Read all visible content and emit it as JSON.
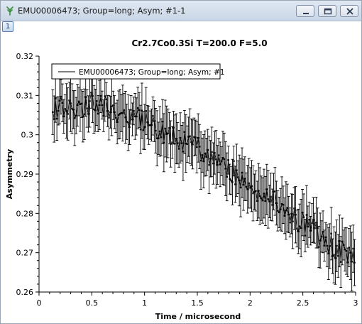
{
  "window": {
    "title": "EMU00006473; Group=long; Asym; #1-1",
    "graph_number": "1",
    "icons": [
      "app-graph-icon",
      "minimize-icon",
      "maximize-icon",
      "close-icon"
    ]
  },
  "chart_data": {
    "type": "scatter",
    "title": "Cr2.7Co0.3Si T=200.0 F=5.0",
    "xlabel": "Time / microsecond",
    "ylabel": "Asymmetry",
    "xlim": [
      0,
      3
    ],
    "ylim": [
      0.26,
      0.32
    ],
    "x_ticks": [
      "0",
      "0.5",
      "1",
      "1.5",
      "2",
      "2.5",
      "3"
    ],
    "y_ticks": [
      "0.26",
      "0.27",
      "0.28",
      "0.29",
      "0.3",
      "0.31",
      "0.32"
    ],
    "grid": false,
    "legend_position": "top-left",
    "series": [
      {
        "name": "EMU00006473; Group=long; Asym; #1",
        "marker": "point with error bars",
        "trend": {
          "x": [
            0.13,
            0.3,
            0.5,
            0.75,
            1.0,
            1.25,
            1.5,
            1.75,
            2.0,
            2.25,
            2.5,
            2.75,
            3.0
          ],
          "y": [
            0.307,
            0.3065,
            0.308,
            0.306,
            0.3035,
            0.3,
            0.2965,
            0.2925,
            0.2875,
            0.2825,
            0.2775,
            0.2725,
            0.268
          ]
        },
        "noise_amplitude": 0.003,
        "error_bar_range": [
          0.0035,
          0.0075
        ],
        "point_spacing": 0.013
      }
    ]
  }
}
